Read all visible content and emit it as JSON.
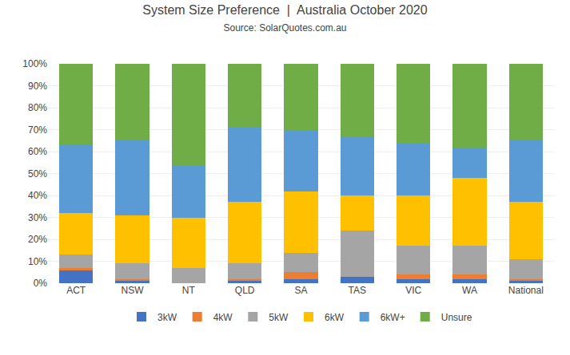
{
  "chart_data": {
    "type": "bar",
    "title": "System Size Preference  |  Australia October 2020",
    "subtitle": "Source: SolarQuotes.com.au",
    "categories": [
      "ACT",
      "NSW",
      "NT",
      "QLD",
      "SA",
      "TAS",
      "VIC",
      "WA",
      "National"
    ],
    "series": [
      {
        "name": "3kW",
        "color": "#4472C4",
        "values": [
          6,
          1,
          0,
          1,
          2,
          3,
          2,
          2,
          1
        ]
      },
      {
        "name": "4kW",
        "color": "#ED7D31",
        "values": [
          1,
          1,
          0,
          1,
          3,
          0,
          2,
          2,
          1
        ]
      },
      {
        "name": "5kW",
        "color": "#A5A5A5",
        "values": [
          6,
          7,
          7,
          7,
          9,
          21,
          13,
          13,
          9
        ]
      },
      {
        "name": "6kW",
        "color": "#FFC000",
        "values": [
          19,
          22,
          23,
          28,
          28,
          16,
          23,
          31,
          26
        ]
      },
      {
        "name": "6kW+",
        "color": "#5B9BD5",
        "values": [
          31,
          34,
          24,
          34,
          28,
          27,
          24,
          14,
          28
        ]
      },
      {
        "name": "Unsure",
        "color": "#70AD47",
        "values": [
          37,
          35,
          46,
          29,
          30,
          33,
          36,
          38,
          35
        ]
      }
    ],
    "stacked": true,
    "ylim": [
      0,
      100
    ],
    "yticks": [
      {
        "value": 0,
        "label": "0%"
      },
      {
        "value": 10,
        "label": "10%"
      },
      {
        "value": 20,
        "label": "20%"
      },
      {
        "value": 30,
        "label": "30%"
      },
      {
        "value": 40,
        "label": "40%"
      },
      {
        "value": 50,
        "label": "50%"
      },
      {
        "value": 60,
        "label": "60%"
      },
      {
        "value": 70,
        "label": "70%"
      },
      {
        "value": 80,
        "label": "80%"
      },
      {
        "value": 90,
        "label": "90%"
      },
      {
        "value": 100,
        "label": "100%"
      }
    ],
    "grid": true,
    "legend": "bottom"
  }
}
